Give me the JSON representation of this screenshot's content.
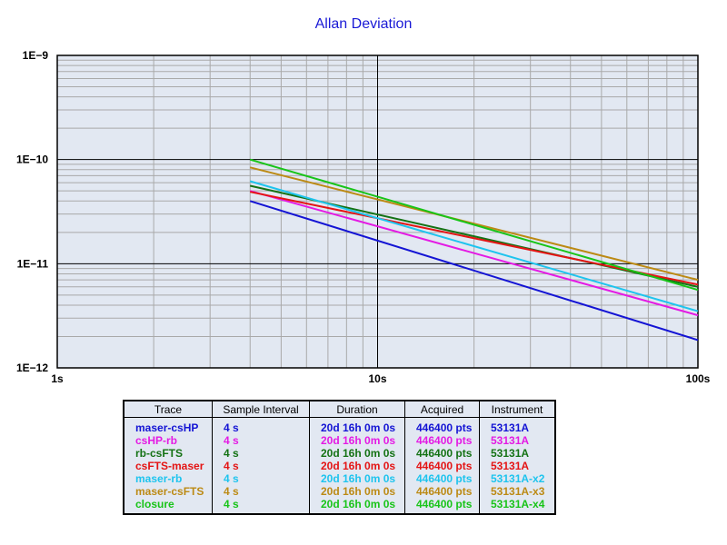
{
  "chart_data": {
    "type": "line",
    "title": "Allan Deviation",
    "xscale": "log",
    "yscale": "log",
    "xlim": [
      1,
      100
    ],
    "ylim": [
      1e-12,
      1e-09
    ],
    "xticks": [
      {
        "value": 1,
        "label": "1s"
      },
      {
        "value": 10,
        "label": "10s"
      },
      {
        "value": 100,
        "label": "100s"
      }
    ],
    "yticks": [
      {
        "value": 1e-09,
        "label": "1E−9"
      },
      {
        "value": 1e-10,
        "label": "1E−10"
      },
      {
        "value": 1e-11,
        "label": "1E−11"
      },
      {
        "value": 1e-12,
        "label": "1E−12"
      }
    ],
    "grid": true,
    "series": [
      {
        "name": "maser-csHP",
        "color": "#1414d4",
        "x": [
          4,
          100
        ],
        "y": [
          4e-11,
          1.85e-12
        ]
      },
      {
        "name": "csHP-rb",
        "color": "#e41ae4",
        "x": [
          4,
          100
        ],
        "y": [
          5e-11,
          3.2e-12
        ]
      },
      {
        "name": "rb-csFTS",
        "color": "#147214",
        "x": [
          4,
          100
        ],
        "y": [
          5.6e-11,
          6e-12
        ]
      },
      {
        "name": "csFTS-maser",
        "color": "#e41414",
        "x": [
          4,
          100
        ],
        "y": [
          4.9e-11,
          6.3e-12
        ]
      },
      {
        "name": "maser-rb",
        "color": "#1ec4ee",
        "x": [
          4,
          100
        ],
        "y": [
          6.2e-11,
          3.5e-12
        ]
      },
      {
        "name": "maser-csFTS",
        "color": "#bc8a14",
        "x": [
          4,
          100
        ],
        "y": [
          8.4e-11,
          7e-12
        ]
      },
      {
        "name": "closure",
        "color": "#18c418",
        "x": [
          4,
          100
        ],
        "y": [
          1e-10,
          5.6e-12
        ]
      }
    ]
  },
  "table": {
    "headers": [
      "Trace",
      "Sample Interval",
      "Duration",
      "Acquired",
      "Instrument"
    ],
    "rows": [
      {
        "trace": "maser-csHP",
        "interval": "4 s",
        "duration": "20d 16h 0m 0s",
        "acquired": "446400 pts",
        "instrument": "53131A",
        "color": "#1414d4"
      },
      {
        "trace": "csHP-rb",
        "interval": "4 s",
        "duration": "20d 16h 0m 0s",
        "acquired": "446400 pts",
        "instrument": "53131A",
        "color": "#e41ae4"
      },
      {
        "trace": "rb-csFTS",
        "interval": "4 s",
        "duration": "20d 16h 0m 0s",
        "acquired": "446400 pts",
        "instrument": "53131A",
        "color": "#147214"
      },
      {
        "trace": "csFTS-maser",
        "interval": "4 s",
        "duration": "20d 16h 0m 0s",
        "acquired": "446400 pts",
        "instrument": "53131A",
        "color": "#e41414"
      },
      {
        "trace": "maser-rb",
        "interval": "4 s",
        "duration": "20d 16h 0m 0s",
        "acquired": "446400 pts",
        "instrument": "53131A-x2",
        "color": "#1ec4ee"
      },
      {
        "trace": "maser-csFTS",
        "interval": "4 s",
        "duration": "20d 16h 0m 0s",
        "acquired": "446400 pts",
        "instrument": "53131A-x3",
        "color": "#bc8a14"
      },
      {
        "trace": "closure",
        "interval": "4 s",
        "duration": "20d 16h 0m 0s",
        "acquired": "446400 pts",
        "instrument": "53131A-x4",
        "color": "#18c418"
      }
    ]
  }
}
